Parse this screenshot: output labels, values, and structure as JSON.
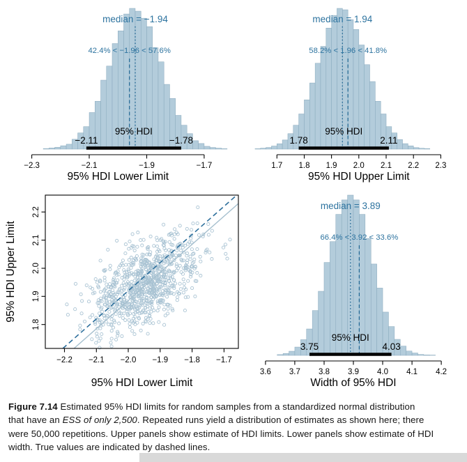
{
  "colors": {
    "bar_fill": "#b3ccdb",
    "bar_edge": "#87a8bc",
    "annotation_blue": "#2d739f",
    "guide_blue": "#1f6592",
    "hdi_black": "#000000",
    "point_stroke": "#a9c3d3",
    "solid_line": "#a5bfce",
    "dashed_line": "#2d6f9c",
    "axis_black": "#000000",
    "caption_text": "#151515",
    "scrollbar_gray": "#d9d9d9"
  },
  "chart_data": [
    {
      "id": "hdi_lower_hist",
      "type": "bar",
      "panel": "top-left",
      "median": -1.94,
      "median_annotation": "median = −1.94",
      "comparison_value": -1.96,
      "comparison_annotation": "42.4% < −1.96 < 57.6%",
      "pct_below": 42.4,
      "pct_above": 57.6,
      "hdi_interval": [
        -2.11,
        -1.78
      ],
      "hdi_label": "95% HDI",
      "hdi_low_label": "−2.11",
      "hdi_high_label": "−1.78",
      "xlabel": "95% HDI Lower Limit",
      "xlim": [
        -2.35,
        -1.61
      ],
      "tick_values": [
        -2.3,
        -2.1,
        -1.9,
        -1.7
      ],
      "tick_labels": [
        "−2.3",
        "−2.1",
        "−1.9",
        "−1.7"
      ],
      "bin_start": -2.26,
      "bin_width": 0.02,
      "counts": [
        0.4,
        0.8,
        1.3,
        2.4,
        3.5,
        7,
        11.5,
        16,
        26,
        34,
        49,
        59,
        75,
        84,
        96,
        100,
        98,
        93,
        87,
        72,
        62,
        46,
        36,
        24,
        17,
        11,
        6,
        4,
        2,
        1.2,
        0.7,
        0.3
      ]
    },
    {
      "id": "hdi_upper_hist",
      "type": "bar",
      "panel": "top-right",
      "median": 1.94,
      "median_annotation": "median = 1.94",
      "comparison_value": 1.96,
      "comparison_annotation": "58.2% < 1.96 < 41.8%",
      "pct_below": 58.2,
      "pct_above": 41.8,
      "hdi_interval": [
        1.78,
        2.11
      ],
      "hdi_label": "95% HDI",
      "hdi_low_label": "1.78",
      "hdi_high_label": "2.11",
      "xlabel": "95% HDI Upper Limit",
      "xlim": [
        1.61,
        2.35
      ],
      "tick_values": [
        1.7,
        1.8,
        1.9,
        2.0,
        2.1,
        2.2,
        2.3
      ],
      "tick_labels": [
        "1.7",
        "1.8",
        "1.9",
        "2.0",
        "2.1",
        "2.2",
        "2.3"
      ],
      "bin_start": 1.62,
      "bin_width": 0.02,
      "counts": [
        0.3,
        0.7,
        1.2,
        2.2,
        3.8,
        6.5,
        11,
        17,
        25,
        35,
        47,
        61,
        73,
        86,
        95,
        100,
        99,
        92,
        85,
        74,
        60,
        48,
        34,
        25,
        16,
        11.5,
        6.8,
        3.9,
        2.3,
        1.1,
        0.6,
        0.4
      ]
    },
    {
      "id": "hdi_limits_scatter",
      "type": "scatter",
      "panel": "bottom-left",
      "xlabel": "95% HDI Lower Limit",
      "ylabel": "95% HDI Upper Limit",
      "xlim": [
        -2.26,
        -1.655
      ],
      "ylim": [
        1.715,
        2.26
      ],
      "x_tick_values": [
        -2.2,
        -2.1,
        -2.0,
        -1.9,
        -1.8,
        -1.7
      ],
      "x_tick_labels": [
        "−2.2",
        "−2.1",
        "−2.0",
        "−1.9",
        "−1.8",
        "−1.7"
      ],
      "y_tick_values": [
        1.8,
        1.9,
        2.0,
        2.1,
        2.2
      ],
      "y_tick_labels": [
        "1.8",
        "1.9",
        "2.0",
        "2.1",
        "2.2"
      ],
      "points_summary": {
        "n": 900,
        "x_mean": -1.94,
        "x_sd": 0.085,
        "y_mean": 1.945,
        "y_sd": 0.082,
        "correlation": 0.55,
        "seed": 20140714
      },
      "lines": [
        {
          "name": "median-width-line",
          "style": "solid",
          "slope": 1,
          "intercept": 3.885
        },
        {
          "name": "true-values-line",
          "style": "dashed",
          "slope": 1,
          "intercept": 3.92
        }
      ]
    },
    {
      "id": "hdi_width_hist",
      "type": "bar",
      "panel": "bottom-right",
      "median": 3.89,
      "median_annotation": "median = 3.89",
      "comparison_value": 3.92,
      "comparison_annotation": "66.4% < 3.92 < 33.6%",
      "pct_below": 66.4,
      "pct_above": 33.6,
      "hdi_interval": [
        3.75,
        4.03
      ],
      "hdi_label": "95% HDI",
      "hdi_low_label": "3.75",
      "hdi_high_label": "4.03",
      "xlabel": "Width of 95% HDI",
      "xlim": [
        3.555,
        4.245
      ],
      "tick_values": [
        3.6,
        3.7,
        3.8,
        3.9,
        4.0,
        4.1,
        4.2
      ],
      "tick_labels": [
        "3.6",
        "3.7",
        "3.8",
        "3.9",
        "4.0",
        "4.1",
        "4.2"
      ],
      "bin_start": 3.64,
      "bin_width": 0.02,
      "counts": [
        0.5,
        1.2,
        2.6,
        5.2,
        9.8,
        16.5,
        28,
        40,
        58,
        71,
        88,
        97,
        100,
        97,
        88,
        73,
        57,
        42,
        27,
        18,
        10,
        5.8,
        2.7,
        1.5,
        0.6,
        0.3,
        0.2
      ]
    }
  ],
  "caption": {
    "lines": [
      [
        {
          "text": "Figure 7.14",
          "bold": true
        },
        {
          "text": "  Estimated 95% HDI limits for random samples from a standardized normal distribution"
        }
      ],
      [
        {
          "text": "that have an "
        },
        {
          "text": "ESS of only 2,500",
          "italic": true
        },
        {
          "text": ". Repeated runs yield a distribution of estimates as shown here; there"
        }
      ],
      [
        {
          "text": "were 50,000 repetitions. Upper panels show estimate of HDI limits. Lower panels show estimate of HDI"
        }
      ],
      [
        {
          "text": "width. True values are indicated by dashed lines."
        }
      ]
    ]
  }
}
